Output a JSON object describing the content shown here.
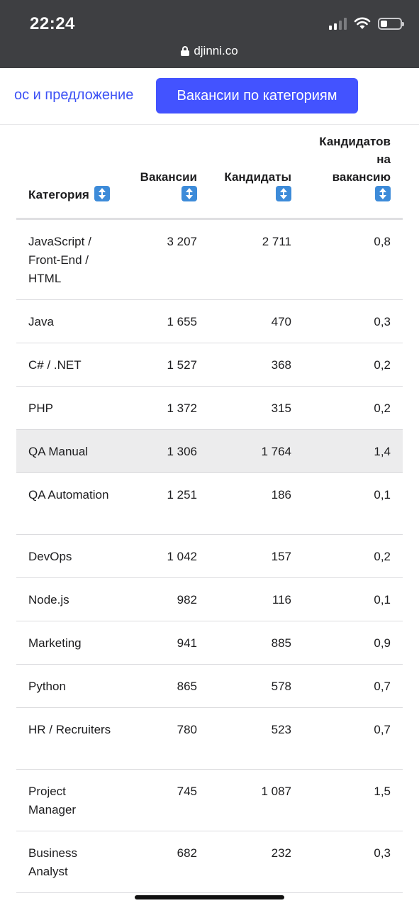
{
  "status_bar": {
    "time": "22:24"
  },
  "browser": {
    "domain": "djinni.co"
  },
  "tabs": {
    "partial_label": "ос и предложение",
    "active_label": "Вакансии по категориям"
  },
  "table": {
    "headers": {
      "category": "Категория",
      "vacancies": "Вакансии",
      "candidates": "Кандидаты",
      "ratio_line1": "Кандидатов",
      "ratio_line2": "на",
      "ratio_line3": "вакансию"
    },
    "rows": [
      {
        "category": "JavaScript / Front-End / HTML",
        "vacancies": "3 207",
        "candidates": "2 711",
        "ratio": "0,8"
      },
      {
        "category": "Java",
        "vacancies": "1 655",
        "candidates": "470",
        "ratio": "0,3"
      },
      {
        "category": "C# / .NET",
        "vacancies": "1 527",
        "candidates": "368",
        "ratio": "0,2"
      },
      {
        "category": "PHP",
        "vacancies": "1 372",
        "candidates": "315",
        "ratio": "0,2"
      },
      {
        "category": "QA Manual",
        "vacancies": "1 306",
        "candidates": "1 764",
        "ratio": "1,4"
      },
      {
        "category": "QA Automation",
        "vacancies": "1 251",
        "candidates": "186",
        "ratio": "0,1"
      },
      {
        "category": "DevOps",
        "vacancies": "1 042",
        "candidates": "157",
        "ratio": "0,2"
      },
      {
        "category": "Node.js",
        "vacancies": "982",
        "candidates": "116",
        "ratio": "0,1"
      },
      {
        "category": "Marketing",
        "vacancies": "941",
        "candidates": "885",
        "ratio": "0,9"
      },
      {
        "category": "Python",
        "vacancies": "865",
        "candidates": "578",
        "ratio": "0,7"
      },
      {
        "category": "HR / Recruiters",
        "vacancies": "780",
        "candidates": "523",
        "ratio": "0,7"
      },
      {
        "category": "Project Manager",
        "vacancies": "745",
        "candidates": "1 087",
        "ratio": "1,5"
      },
      {
        "category": "Business Analyst",
        "vacancies": "682",
        "candidates": "232",
        "ratio": "0,3"
      }
    ]
  },
  "colors": {
    "accent": "#4353ff",
    "link": "#3d52f5",
    "sort_icon": "#3d8bd9",
    "highlight_row": "#ececed"
  }
}
